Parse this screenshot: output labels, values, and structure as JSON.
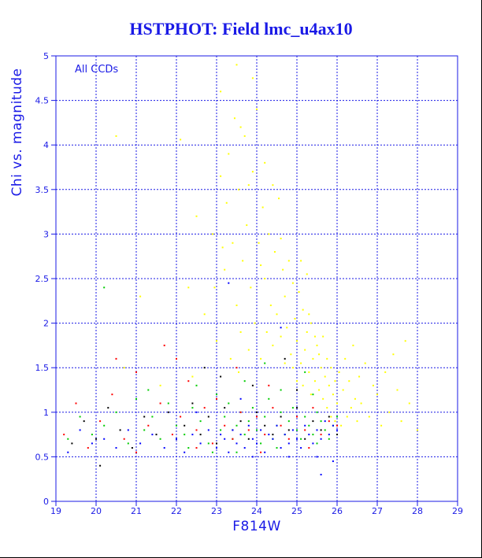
{
  "chart_data": {
    "type": "scatter",
    "title": "HSTPHOT: Field lmc_u4ax10",
    "xlabel": "F814W",
    "ylabel": "Chi vs. magnitude",
    "annotation": "All CCDs",
    "xlim": [
      19,
      29
    ],
    "ylim": [
      0,
      5
    ],
    "x_ticks": [
      19,
      20,
      21,
      22,
      23,
      24,
      25,
      26,
      27,
      28,
      29
    ],
    "y_ticks": [
      0,
      0.5,
      1,
      1.5,
      2,
      2.5,
      3,
      3.5,
      4,
      4.5,
      5
    ],
    "y_tick_labels": [
      "0",
      "0.5",
      "1",
      "1.5",
      "2",
      "2.5",
      "3",
      "3.5",
      "4",
      "4.5",
      "5"
    ],
    "grid": true,
    "colors": {
      "axis": "#1a1ae6",
      "grid": "#1a1ae6",
      "title": "#1a1ae6"
    },
    "series": [
      {
        "color": "#ffff00",
        "points": [
          [
            22.1,
            4.06
          ],
          [
            22.3,
            2.4
          ],
          [
            22.5,
            3.2
          ],
          [
            22.7,
            2.1
          ],
          [
            22.9,
            3.0
          ],
          [
            23.0,
            1.8
          ],
          [
            23.1,
            4.6
          ],
          [
            23.2,
            2.6
          ],
          [
            23.3,
            3.9
          ],
          [
            23.35,
            1.6
          ],
          [
            23.4,
            2.9
          ],
          [
            23.45,
            4.3
          ],
          [
            23.5,
            2.2
          ],
          [
            23.55,
            3.5
          ],
          [
            23.6,
            1.9
          ],
          [
            23.65,
            2.7
          ],
          [
            23.7,
            4.1
          ],
          [
            23.75,
            3.1
          ],
          [
            23.8,
            1.7
          ],
          [
            23.85,
            2.4
          ],
          [
            23.9,
            3.7
          ],
          [
            23.95,
            2.0
          ],
          [
            24.0,
            4.4
          ],
          [
            24.05,
            2.9
          ],
          [
            24.1,
            1.6
          ],
          [
            24.15,
            3.3
          ],
          [
            24.2,
            2.5
          ],
          [
            24.25,
            1.9
          ],
          [
            24.3,
            3.0
          ],
          [
            24.35,
            2.2
          ],
          [
            24.4,
            1.75
          ],
          [
            24.45,
            2.8
          ],
          [
            24.5,
            2.1
          ],
          [
            24.55,
            3.4
          ],
          [
            24.6,
            1.85
          ],
          [
            24.65,
            2.6
          ],
          [
            24.7,
            2.3
          ],
          [
            24.75,
            1.95
          ],
          [
            24.8,
            2.7
          ],
          [
            24.85,
            1.65
          ],
          [
            24.9,
            2.45
          ],
          [
            24.95,
            2.05
          ],
          [
            25.0,
            1.8
          ],
          [
            25.05,
            2.35
          ],
          [
            25.1,
            1.55
          ],
          [
            25.15,
            2.15
          ],
          [
            25.2,
            1.7
          ],
          [
            25.25,
            1.9
          ],
          [
            25.3,
            1.45
          ],
          [
            25.35,
            2.0
          ],
          [
            25.4,
            1.6
          ],
          [
            25.45,
            1.35
          ],
          [
            25.5,
            1.75
          ],
          [
            25.55,
            1.25
          ],
          [
            25.6,
            1.5
          ],
          [
            25.65,
            1.15
          ],
          [
            25.7,
            1.4
          ],
          [
            25.75,
            1.05
          ],
          [
            25.8,
            1.3
          ],
          [
            25.85,
            0.95
          ],
          [
            25.9,
            1.2
          ],
          [
            25.95,
            0.9
          ],
          [
            26.0,
            1.1
          ],
          [
            26.05,
            1.45
          ],
          [
            26.1,
            0.85
          ],
          [
            26.15,
            1.25
          ],
          [
            26.2,
            1.6
          ],
          [
            26.25,
            0.95
          ],
          [
            26.3,
            1.35
          ],
          [
            26.35,
            1.05
          ],
          [
            26.4,
            1.75
          ],
          [
            26.45,
            1.15
          ],
          [
            26.5,
            0.9
          ],
          [
            26.55,
            1.4
          ],
          [
            26.6,
            1.1
          ],
          [
            26.7,
            1.55
          ],
          [
            26.8,
            0.95
          ],
          [
            26.9,
            1.3
          ],
          [
            27.0,
            1.2
          ],
          [
            27.1,
            0.85
          ],
          [
            27.2,
            1.45
          ],
          [
            27.3,
            1.0
          ],
          [
            27.4,
            1.65
          ],
          [
            27.5,
            1.25
          ],
          [
            27.6,
            0.9
          ],
          [
            27.7,
            1.8
          ],
          [
            27.8,
            1.1
          ],
          [
            28.0,
            0.8
          ],
          [
            25.25,
            2.55
          ],
          [
            25.15,
            1.3
          ],
          [
            25.35,
            1.2
          ],
          [
            25.45,
            1.85
          ],
          [
            25.55,
            1.65
          ],
          [
            25.65,
            1.85
          ],
          [
            25.75,
            1.6
          ],
          [
            25.85,
            1.5
          ],
          [
            25.95,
            1.35
          ],
          [
            24.7,
            1.55
          ],
          [
            24.9,
            1.5
          ],
          [
            25.0,
            1.35
          ],
          [
            23.15,
            2.85
          ],
          [
            23.25,
            3.35
          ],
          [
            23.9,
            4.75
          ],
          [
            24.2,
            3.8
          ],
          [
            23.6,
            4.2
          ],
          [
            22.4,
            1.4
          ],
          [
            21.6,
            1.3
          ],
          [
            20.7,
            1.5
          ],
          [
            21.1,
            2.3
          ],
          [
            20.5,
            4.1
          ],
          [
            23.5,
            4.9
          ],
          [
            23.1,
            3.65
          ],
          [
            22.95,
            2.4
          ],
          [
            23.55,
            1.45
          ],
          [
            24.6,
            2.95
          ],
          [
            24.4,
            3.55
          ],
          [
            23.8,
            3.55
          ],
          [
            24.1,
            2.65
          ],
          [
            25.1,
            2.7
          ],
          [
            25.3,
            2.1
          ]
        ]
      },
      {
        "color": "#00cc00",
        "points": [
          [
            19.3,
            0.7
          ],
          [
            19.6,
            0.95
          ],
          [
            19.9,
            0.75
          ],
          [
            20.2,
            0.85
          ],
          [
            20.5,
            1.0
          ],
          [
            20.8,
            0.65
          ],
          [
            21.0,
            1.15
          ],
          [
            21.2,
            0.8
          ],
          [
            21.4,
            0.95
          ],
          [
            21.6,
            0.7
          ],
          [
            21.8,
            1.1
          ],
          [
            22.0,
            0.85
          ],
          [
            22.2,
            0.75
          ],
          [
            22.4,
            1.05
          ],
          [
            22.6,
            0.9
          ],
          [
            22.8,
            0.65
          ],
          [
            23.0,
            1.2
          ],
          [
            23.1,
            0.8
          ],
          [
            23.2,
            0.95
          ],
          [
            23.3,
            1.1
          ],
          [
            23.4,
            0.7
          ],
          [
            23.5,
            0.85
          ],
          [
            23.6,
            1.0
          ],
          [
            23.7,
            0.75
          ],
          [
            23.8,
            0.9
          ],
          [
            23.9,
            1.05
          ],
          [
            24.0,
            0.8
          ],
          [
            24.1,
            0.65
          ],
          [
            24.2,
            0.95
          ],
          [
            24.3,
            1.15
          ],
          [
            24.4,
            0.7
          ],
          [
            24.5,
            0.85
          ],
          [
            24.6,
            1.0
          ],
          [
            24.7,
            0.75
          ],
          [
            24.8,
            0.9
          ],
          [
            24.9,
            1.05
          ],
          [
            25.0,
            0.8
          ],
          [
            25.1,
            0.7
          ],
          [
            25.2,
            0.95
          ],
          [
            25.3,
            0.85
          ],
          [
            25.4,
            0.75
          ],
          [
            25.5,
            1.0
          ],
          [
            25.6,
            0.9
          ],
          [
            25.7,
            0.8
          ],
          [
            25.8,
            0.7
          ],
          [
            25.9,
            0.85
          ],
          [
            26.0,
            0.95
          ],
          [
            22.5,
            1.3
          ],
          [
            23.7,
            1.35
          ],
          [
            24.6,
            1.25
          ],
          [
            25.4,
            1.2
          ],
          [
            22.3,
            0.6
          ],
          [
            23.5,
            0.55
          ],
          [
            24.5,
            0.6
          ],
          [
            25.5,
            0.65
          ],
          [
            20.2,
            2.4
          ],
          [
            21.3,
            1.25
          ],
          [
            24.2,
            1.55
          ],
          [
            25.2,
            1.45
          ],
          [
            22.9,
            0.55
          ]
        ]
      },
      {
        "color": "#ff0000",
        "points": [
          [
            19.2,
            0.75
          ],
          [
            19.5,
            1.1
          ],
          [
            19.8,
            0.6
          ],
          [
            20.1,
            0.9
          ],
          [
            20.4,
            1.2
          ],
          [
            20.7,
            0.7
          ],
          [
            21.0,
            1.45
          ],
          [
            21.3,
            0.85
          ],
          [
            21.6,
            1.1
          ],
          [
            21.9,
            0.75
          ],
          [
            22.1,
            0.95
          ],
          [
            22.3,
            1.35
          ],
          [
            22.5,
            0.8
          ],
          [
            22.7,
            1.05
          ],
          [
            22.9,
            0.65
          ],
          [
            23.0,
            1.15
          ],
          [
            23.2,
            0.85
          ],
          [
            23.4,
            0.7
          ],
          [
            23.6,
            1.0
          ],
          [
            23.8,
            0.8
          ],
          [
            24.0,
            0.95
          ],
          [
            24.2,
            0.75
          ],
          [
            24.4,
            1.05
          ],
          [
            24.6,
            0.85
          ],
          [
            24.8,
            0.7
          ],
          [
            25.0,
            0.95
          ],
          [
            25.2,
            0.8
          ],
          [
            25.4,
            1.05
          ],
          [
            25.6,
            0.75
          ],
          [
            25.8,
            0.9
          ],
          [
            26.0,
            0.85
          ],
          [
            22.0,
            1.6
          ],
          [
            21.7,
            1.75
          ],
          [
            23.5,
            1.5
          ],
          [
            24.3,
            1.3
          ],
          [
            21.0,
            0.55
          ],
          [
            22.5,
            0.6
          ],
          [
            24.1,
            0.55
          ],
          [
            25.3,
            0.6
          ],
          [
            20.5,
            1.6
          ]
        ]
      },
      {
        "color": "#000000",
        "points": [
          [
            19.4,
            0.65
          ],
          [
            19.7,
            0.9
          ],
          [
            20.0,
            0.7
          ],
          [
            20.3,
            1.05
          ],
          [
            20.6,
            0.8
          ],
          [
            20.9,
            0.6
          ],
          [
            21.2,
            0.95
          ],
          [
            21.5,
            0.75
          ],
          [
            21.8,
            1.0
          ],
          [
            22.0,
            0.7
          ],
          [
            22.2,
            0.85
          ],
          [
            22.4,
            1.1
          ],
          [
            22.6,
            0.75
          ],
          [
            22.8,
            0.95
          ],
          [
            23.0,
            0.65
          ],
          [
            23.2,
            1.05
          ],
          [
            23.4,
            0.8
          ],
          [
            23.6,
            0.9
          ],
          [
            23.8,
            0.7
          ],
          [
            24.0,
            1.0
          ],
          [
            24.2,
            0.85
          ],
          [
            24.4,
            0.75
          ],
          [
            24.6,
            0.95
          ],
          [
            24.8,
            0.8
          ],
          [
            25.0,
            1.05
          ],
          [
            25.2,
            0.7
          ],
          [
            25.4,
            0.9
          ],
          [
            25.6,
            0.8
          ],
          [
            25.8,
            0.95
          ],
          [
            26.0,
            0.75
          ],
          [
            23.1,
            1.4
          ],
          [
            23.9,
            1.3
          ],
          [
            25.0,
            1.25
          ],
          [
            22.7,
            1.5
          ],
          [
            24.7,
            1.6
          ],
          [
            20.1,
            0.4
          ]
        ]
      },
      {
        "color": "#0000ff",
        "points": [
          [
            19.3,
            0.55
          ],
          [
            19.6,
            0.8
          ],
          [
            19.9,
            0.65
          ],
          [
            20.2,
            0.7
          ],
          [
            20.5,
            0.6
          ],
          [
            20.8,
            0.8
          ],
          [
            21.1,
            0.65
          ],
          [
            21.4,
            0.75
          ],
          [
            21.7,
            0.6
          ],
          [
            22.0,
            0.7
          ],
          [
            22.2,
            0.55
          ],
          [
            22.4,
            0.75
          ],
          [
            22.6,
            0.65
          ],
          [
            22.8,
            0.8
          ],
          [
            23.0,
            0.6
          ],
          [
            23.1,
            0.75
          ],
          [
            23.2,
            0.7
          ],
          [
            23.3,
            0.55
          ],
          [
            23.4,
            0.8
          ],
          [
            23.5,
            0.65
          ],
          [
            23.6,
            0.75
          ],
          [
            23.7,
            0.6
          ],
          [
            23.8,
            0.85
          ],
          [
            23.9,
            0.7
          ],
          [
            24.0,
            0.65
          ],
          [
            24.1,
            0.8
          ],
          [
            24.2,
            0.55
          ],
          [
            24.3,
            0.75
          ],
          [
            24.4,
            0.7
          ],
          [
            24.5,
            0.85
          ],
          [
            24.6,
            0.6
          ],
          [
            24.7,
            0.75
          ],
          [
            24.8,
            0.65
          ],
          [
            24.9,
            0.8
          ],
          [
            25.0,
            0.7
          ],
          [
            25.1,
            0.6
          ],
          [
            25.2,
            0.85
          ],
          [
            25.3,
            0.75
          ],
          [
            25.4,
            0.65
          ],
          [
            25.5,
            0.8
          ],
          [
            25.6,
            0.7
          ],
          [
            25.7,
            0.9
          ],
          [
            25.8,
            0.75
          ],
          [
            25.9,
            0.85
          ],
          [
            26.0,
            0.8
          ],
          [
            23.3,
            2.45
          ],
          [
            24.6,
            1.95
          ],
          [
            22.5,
            1.0
          ],
          [
            23.6,
            1.15
          ],
          [
            25.5,
            0.5
          ],
          [
            24.8,
            0.5
          ],
          [
            23.9,
            0.5
          ],
          [
            25.9,
            0.45
          ],
          [
            25.6,
            0.3
          ]
        ]
      }
    ]
  }
}
